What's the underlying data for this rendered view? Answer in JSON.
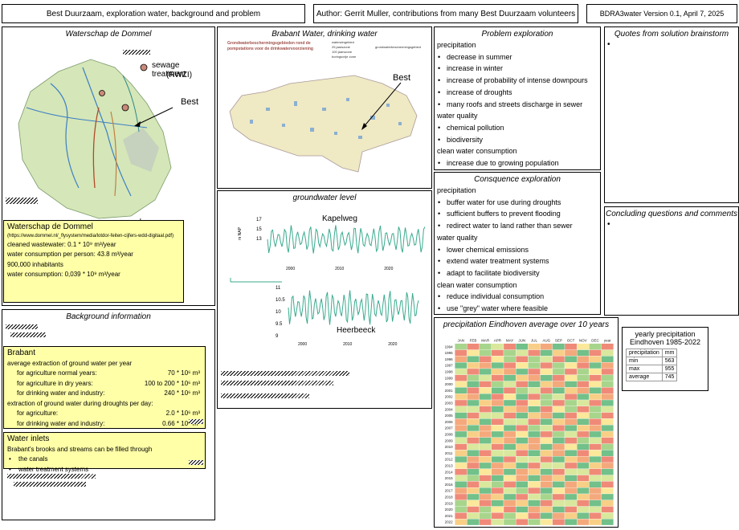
{
  "header": {
    "title": "Best Duurzaam, exploration water, background and problem",
    "author": "Author: Gerrit Muller, contributions from many Best Duurzaam volunteers",
    "version": "BDRA3water Version 0.1, April 7, 2025"
  },
  "dommel": {
    "title": "Waterschap de Dommel",
    "sewage_label": "sewage treatment",
    "sewage_sub": "(RWZI)",
    "best_label": "Best",
    "info_title": "Waterschap de Dommel",
    "info_url": "(https://www.dommel.nl/_flysystem/media/lotdor-feiten-cijfers-wdd-digitaal.pdf)",
    "info_lines": [
      "cleaned wastewater: 0.1 * 10⁹ m³/year",
      "water consumption per person: 43.8 m³/year",
      "900,000 inhabitants",
      "water consumption: 0,039 * 10⁹ m³/year"
    ]
  },
  "brabant_water": {
    "title": "Brabant Water, drinking water",
    "map_heading": "Grondwaterbeschermingsgebieden rond de pompstations voor de drinkwatervoorziening",
    "legend": [
      "waterwingebied",
      "25 jaarszone",
      "100 jaarszone",
      "boringsvrije zone"
    ],
    "legend_side": "grondwaterbeschermingsgebied",
    "best_label": "Best"
  },
  "groundwater": {
    "title": "groundwater level",
    "top_label": "Kapelweg",
    "bottom_label": "Heerbeeck",
    "ylabel": "m NAP",
    "top_ticks": [
      "17",
      "15",
      "13"
    ],
    "top_xticks": [
      "2000",
      "2010",
      "2020"
    ],
    "bottom_ticks": [
      "11",
      "10.5",
      "10",
      "9.5",
      "9"
    ],
    "bottom_xticks": [
      "2000",
      "2010",
      "2020"
    ]
  },
  "background": {
    "title": "Background information",
    "brabant_title": "Brabant",
    "brabant_lines": [
      {
        "label": "average extraction of ground water per year",
        "value": ""
      },
      {
        "label": "for agriculture normal years:",
        "value": "70 * 10⁶ m³"
      },
      {
        "label": "for agriculture in dry years:",
        "value": "100 to 200 * 10⁶ m³"
      },
      {
        "label": "for drinking water and industry:",
        "value": "240 * 10⁶ m³"
      },
      {
        "label": "extraction of ground water during droughts per day:",
        "value": ""
      },
      {
        "label": "for agriculture:",
        "value": "2.0 * 10⁶ m³"
      },
      {
        "label": "for drinking water and industry:",
        "value": "0.66 * 10⁶ m³"
      }
    ],
    "inlets_title": "Water inlets",
    "inlets_text": "Brabant's brooks and streams can be filled through",
    "inlets_items": [
      "the canals",
      "water treatment systems"
    ]
  },
  "problem": {
    "title": "Problem exploration",
    "rows": [
      {
        "t": "h",
        "v": "precipitation"
      },
      {
        "t": "b",
        "v": "decrease in summer"
      },
      {
        "t": "b",
        "v": "increase in winter"
      },
      {
        "t": "b",
        "v": "increase of probability of intense downpours"
      },
      {
        "t": "b",
        "v": "increase of droughts"
      },
      {
        "t": "b",
        "v": "many roofs and streets discharge in sewer"
      },
      {
        "t": "h",
        "v": "water quality"
      },
      {
        "t": "b",
        "v": "chemical pollution"
      },
      {
        "t": "b",
        "v": "biodiversity"
      },
      {
        "t": "h",
        "v": "clean water consumption"
      },
      {
        "t": "b",
        "v": "increase due to growing population"
      }
    ]
  },
  "consequence": {
    "title": "Consquence exploration",
    "rows": [
      {
        "t": "h",
        "v": "precipitation"
      },
      {
        "t": "b",
        "v": "buffer water for use during droughts"
      },
      {
        "t": "b",
        "v": "sufficient buffers to prevent flooding"
      },
      {
        "t": "b",
        "v": "redirect water to land rather than sewer"
      },
      {
        "t": "h",
        "v": "water quality"
      },
      {
        "t": "b",
        "v": "lower chemical emissions"
      },
      {
        "t": "b",
        "v": "extend water treatment systems"
      },
      {
        "t": "b",
        "v": "adapt to facilitate biodiversity"
      },
      {
        "t": "h",
        "v": "clean water consumption"
      },
      {
        "t": "b",
        "v": "reduce individual consumption"
      },
      {
        "t": "b",
        "v": "use \"grey\" water where feasible"
      }
    ]
  },
  "quotes": {
    "title": "Quotes from solution brainstorm",
    "bullet": "•"
  },
  "concluding": {
    "title": "Concluding questions and comments",
    "bullet": "•"
  },
  "precip": {
    "title": "precipitation Eindhoven average over 10 years",
    "columns": [
      "",
      "JAN",
      "FEB",
      "MAR",
      "APR",
      "MAY",
      "JUN",
      "JUL",
      "AUG",
      "SEP",
      "OCT",
      "NOV",
      "DEC",
      "year"
    ],
    "years": [
      "1994",
      "1995",
      "1996",
      "1997",
      "1998",
      "1999",
      "2000",
      "2001",
      "2002",
      "2003",
      "2004",
      "2005",
      "2006",
      "2007",
      "2008",
      "2009",
      "2010",
      "2011",
      "2012",
      "2013",
      "2014",
      "2015",
      "2016",
      "2017",
      "2018",
      "2019",
      "2020",
      "2021",
      "2022"
    ]
  },
  "yearly": {
    "title": "yearly precipitation",
    "subtitle": "Eindhoven 1985-2022",
    "header": [
      "precipitation",
      "mm"
    ],
    "rows": [
      [
        "min",
        "563"
      ],
      [
        "max",
        "955"
      ],
      [
        "average",
        "745"
      ]
    ]
  },
  "colors": {
    "yellow": "#ffffa8",
    "teal": "#3aaa8e",
    "map_green": "#cfe2b4",
    "map_beige": "#efe9c4"
  }
}
